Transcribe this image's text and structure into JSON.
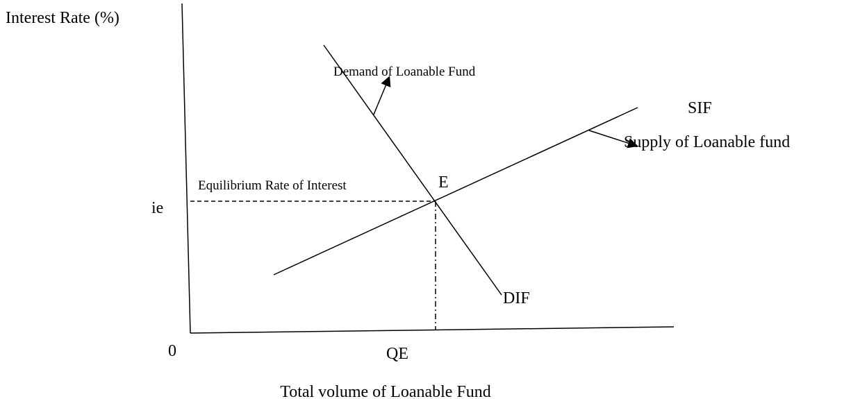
{
  "axes": {
    "y_label": "Interest Rate (%)",
    "x_label": "Total volume of Loanable Fund",
    "origin": "0",
    "y_marker": "ie",
    "x_marker": "QE"
  },
  "curves": {
    "demand": {
      "label": "DIF",
      "description": "Demand of Loanable Fund"
    },
    "supply": {
      "label": "SIF",
      "description": "Supply of Loanable fund"
    }
  },
  "equilibrium": {
    "point": "E",
    "description": "Equilibrium Rate of Interest"
  }
}
